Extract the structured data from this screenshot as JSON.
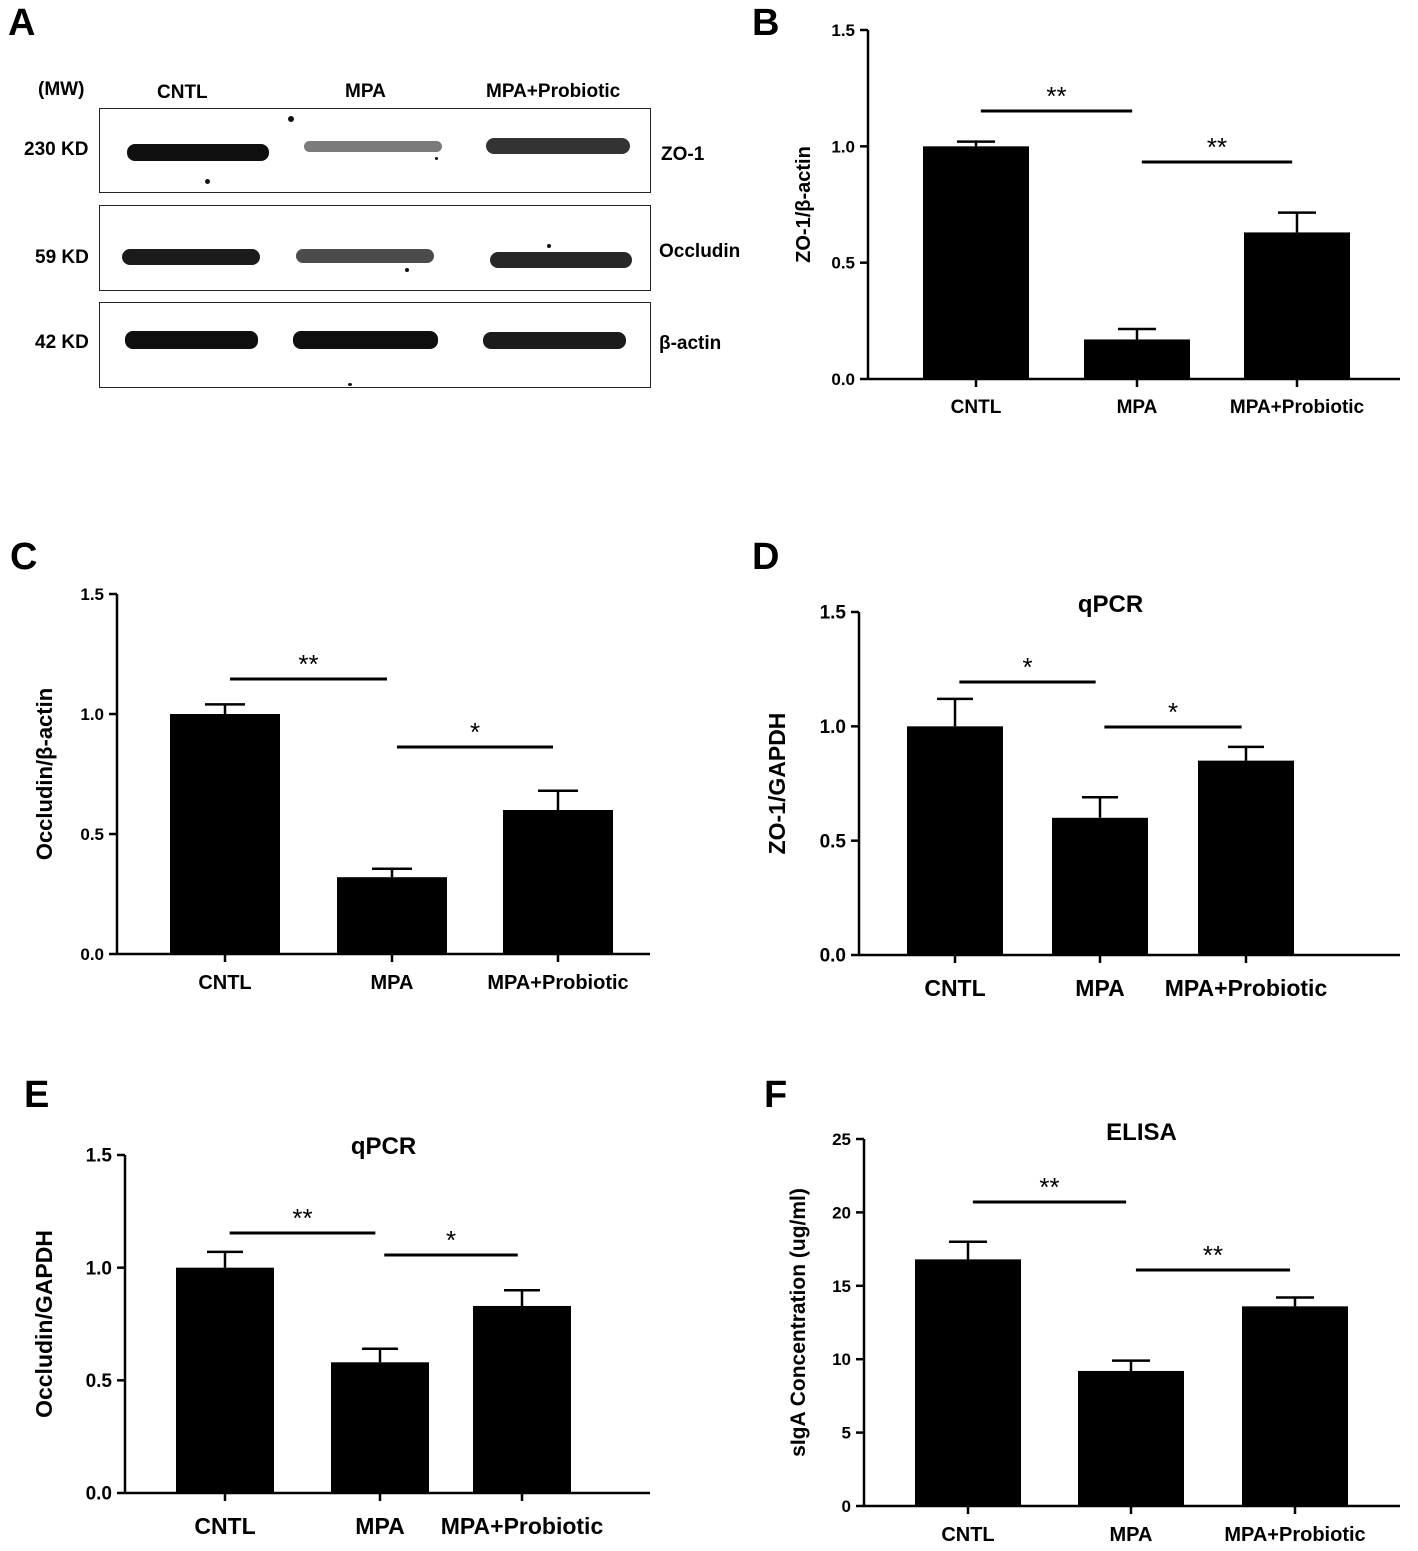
{
  "panels": {
    "A": "A",
    "B": "B",
    "C": "C",
    "D": "D",
    "E": "E",
    "F": "F"
  },
  "blot": {
    "mw_header": "(MW)",
    "lanes": [
      "CNTL",
      "MPA",
      "MPA+Probiotic"
    ],
    "rows": [
      {
        "mw": "230 KD",
        "protein": "ZO-1",
        "intensity": [
          1.0,
          0.45,
          0.8
        ]
      },
      {
        "mw": "59 KD",
        "protein": "Occludin",
        "intensity": [
          0.95,
          0.7,
          0.9
        ]
      },
      {
        "mw": "42 KD",
        "protein": "β-actin",
        "intensity": [
          1.0,
          1.0,
          0.95
        ]
      }
    ]
  },
  "chart_data": [
    {
      "panel": "B",
      "type": "bar",
      "title": "",
      "categories": [
        "CNTL",
        "MPA",
        "MPA+Probiotic"
      ],
      "values": [
        1.0,
        0.17,
        0.63
      ],
      "errors": [
        0.02,
        0.045,
        0.085
      ],
      "ylabel": "ZO-1/β-actin",
      "ylim": [
        0,
        1.5
      ],
      "yticks": [
        "0.0",
        "0.5",
        "1.0",
        "1.5"
      ],
      "significance": [
        {
          "from": 0,
          "to": 1,
          "label": "**"
        },
        {
          "from": 1,
          "to": 2,
          "label": "**"
        }
      ],
      "bar_color": "#000000"
    },
    {
      "panel": "C",
      "type": "bar",
      "title": "",
      "categories": [
        "CNTL",
        "MPA",
        "MPA+Probiotic"
      ],
      "values": [
        1.0,
        0.32,
        0.6
      ],
      "errors": [
        0.04,
        0.035,
        0.08
      ],
      "ylabel": "Occludin/β-actin",
      "ylim": [
        0,
        1.5
      ],
      "yticks": [
        "0.0",
        "0.5",
        "1.0",
        "1.5"
      ],
      "significance": [
        {
          "from": 0,
          "to": 1,
          "label": "**"
        },
        {
          "from": 1,
          "to": 2,
          "label": "*"
        }
      ],
      "bar_color": "#000000"
    },
    {
      "panel": "D",
      "type": "bar",
      "title": "qPCR",
      "categories": [
        "CNTL",
        "MPA",
        "MPA+Probiotic"
      ],
      "values": [
        1.0,
        0.6,
        0.85
      ],
      "errors": [
        0.12,
        0.09,
        0.06
      ],
      "ylabel": "ZO-1/GAPDH",
      "ylim": [
        0,
        1.5
      ],
      "yticks": [
        "0.0",
        "0.5",
        "1.0",
        "1.5"
      ],
      "significance": [
        {
          "from": 0,
          "to": 1,
          "label": "*"
        },
        {
          "from": 1,
          "to": 2,
          "label": "*"
        }
      ],
      "bar_color": "#000000"
    },
    {
      "panel": "E",
      "type": "bar",
      "title": "qPCR",
      "categories": [
        "CNTL",
        "MPA",
        "MPA+Probiotic"
      ],
      "values": [
        1.0,
        0.58,
        0.83
      ],
      "errors": [
        0.07,
        0.06,
        0.07
      ],
      "ylabel": "Occludin/GAPDH",
      "ylim": [
        0,
        1.5
      ],
      "yticks": [
        "0.0",
        "0.5",
        "1.0",
        "1.5"
      ],
      "significance": [
        {
          "from": 0,
          "to": 1,
          "label": "**"
        },
        {
          "from": 1,
          "to": 2,
          "label": "*"
        }
      ],
      "bar_color": "#000000"
    },
    {
      "panel": "F",
      "type": "bar",
      "title": "ELISA",
      "categories": [
        "CNTL",
        "MPA",
        "MPA+Probiotic"
      ],
      "values": [
        16.8,
        9.2,
        13.6
      ],
      "errors": [
        1.2,
        0.7,
        0.6
      ],
      "ylabel": "sIgA Concentration (ug/ml)",
      "ylim": [
        0,
        25
      ],
      "yticks": [
        "0",
        "5",
        "10",
        "15",
        "20",
        "25"
      ],
      "significance": [
        {
          "from": 0,
          "to": 1,
          "label": "**"
        },
        {
          "from": 1,
          "to": 2,
          "label": "**"
        }
      ],
      "bar_color": "#000000"
    }
  ]
}
